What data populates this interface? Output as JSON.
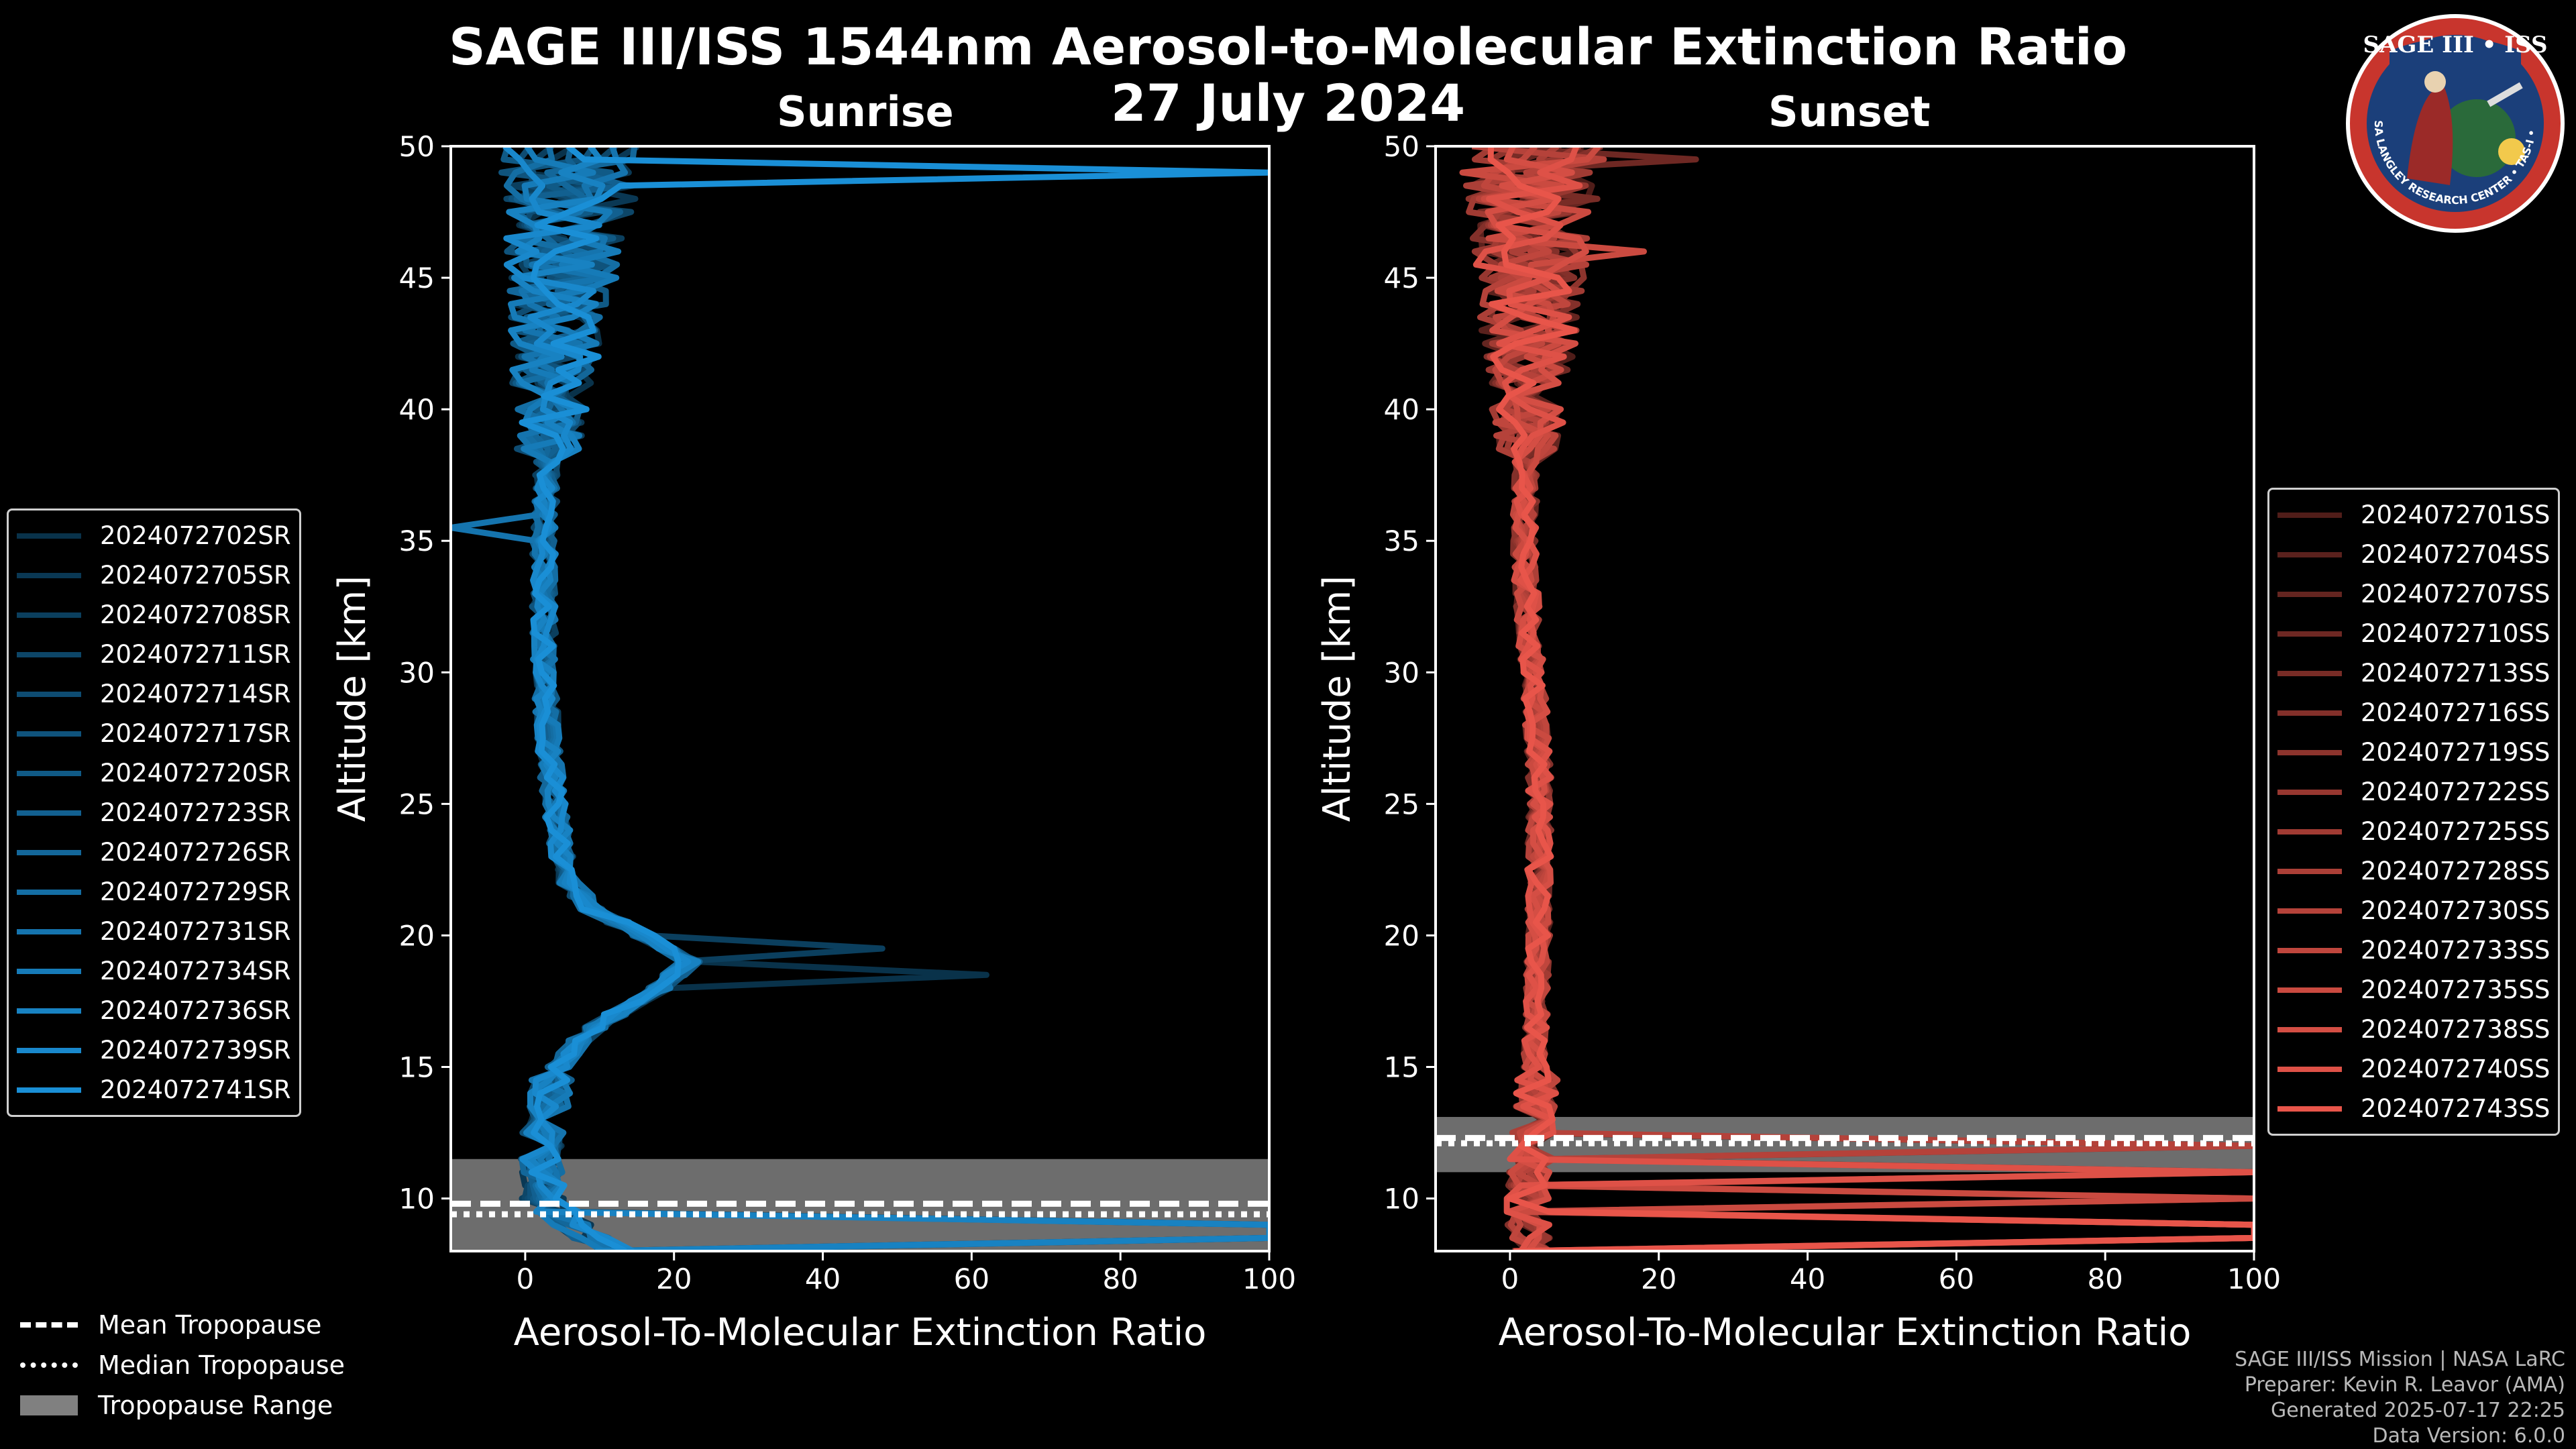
{
  "title": "SAGE III/ISS 1544nm Aerosol-to-Molecular Extinction Ratio",
  "date": "27 July 2024",
  "logo": {
    "text": "SAGE III • ISS",
    "ring": "NASA LANGLEY RESEARCH CENTER • TAS-I • ESA"
  },
  "credits": [
    "SAGE III/ISS Mission | NASA LaRC",
    "Preparer: Kevin R. Leavor (AMA)",
    "Generated 2025-07-17 22:25",
    "Data Version: 6.0.0"
  ],
  "tropopause_legend": {
    "mean": "Mean Tropopause",
    "median": "Median Tropopause",
    "range": "Tropopause Range"
  },
  "colors": {
    "sunrise": "#1a8fd6",
    "sunset": "#e8554a",
    "tropopause_range": "#808080"
  },
  "chart_data": [
    {
      "type": "line",
      "title": "Sunrise",
      "xlabel": "Aerosol-To-Molecular Extinction Ratio",
      "ylabel": "Altitude [km]",
      "xlim": [
        -10,
        100
      ],
      "ylim": [
        8,
        50
      ],
      "xticks": [
        0,
        20,
        40,
        60,
        80,
        100
      ],
      "yticks": [
        10,
        15,
        20,
        25,
        30,
        35,
        40,
        45,
        50
      ],
      "legend_position": "left",
      "tropopause": {
        "range": [
          8,
          11.5
        ],
        "mean": 9.8,
        "median": 9.4
      },
      "base_profile": [
        [
          8,
          12
        ],
        [
          9,
          6
        ],
        [
          10,
          2.5
        ],
        [
          11,
          2
        ],
        [
          12,
          2.2
        ],
        [
          13,
          2.6
        ],
        [
          14,
          3.2
        ],
        [
          15,
          4.5
        ],
        [
          16,
          7
        ],
        [
          17,
          12
        ],
        [
          18,
          18
        ],
        [
          19,
          22
        ],
        [
          20,
          16
        ],
        [
          21,
          9
        ],
        [
          22,
          6
        ],
        [
          23,
          5
        ],
        [
          24,
          4.5
        ],
        [
          25,
          4
        ],
        [
          26,
          3.6
        ],
        [
          27,
          3.2
        ],
        [
          28,
          3
        ],
        [
          29,
          2.8
        ],
        [
          30,
          2.6
        ],
        [
          32,
          2.5
        ],
        [
          34,
          2.5
        ],
        [
          36,
          2.6
        ],
        [
          38,
          3
        ],
        [
          40,
          3.5
        ],
        [
          42,
          4
        ],
        [
          44,
          4.5
        ],
        [
          46,
          5
        ],
        [
          48,
          6
        ],
        [
          50,
          6
        ]
      ],
      "series": [
        {
          "name": "2024072702SR",
          "spike": {
            "alt": 18.5,
            "value": 62
          }
        },
        {
          "name": "2024072705SR"
        },
        {
          "name": "2024072708SR",
          "spike": {
            "alt": 19.5,
            "value": 48
          }
        },
        {
          "name": "2024072711SR"
        },
        {
          "name": "2024072714SR"
        },
        {
          "name": "2024072717SR"
        },
        {
          "name": "2024072720SR",
          "spike": {
            "alt": 20.3,
            "value": 40
          }
        },
        {
          "name": "2024072723SR"
        },
        {
          "name": "2024072726SR"
        },
        {
          "name": "2024072729SR"
        },
        {
          "name": "2024072731SR",
          "spike": {
            "alt": 35.5,
            "value": -10
          }
        },
        {
          "name": "2024072734SR"
        },
        {
          "name": "2024072736SR"
        },
        {
          "name": "2024072739SR"
        },
        {
          "name": "2024072741SR",
          "spike": {
            "alt": 49,
            "value": 100
          }
        }
      ]
    },
    {
      "type": "line",
      "title": "Sunset",
      "xlabel": "Aerosol-To-Molecular Extinction Ratio",
      "ylabel": "Altitude [km]",
      "xlim": [
        -10,
        100
      ],
      "ylim": [
        8,
        50
      ],
      "xticks": [
        0,
        20,
        40,
        60,
        80,
        100
      ],
      "yticks": [
        10,
        15,
        20,
        25,
        30,
        35,
        40,
        45,
        50
      ],
      "legend_position": "right",
      "tropopause": {
        "range": [
          11,
          13.1
        ],
        "mean": 12.3,
        "median": 12.1
      },
      "base_profile": [
        [
          8,
          3
        ],
        [
          9,
          2.5
        ],
        [
          10,
          2.5
        ],
        [
          11,
          2.8
        ],
        [
          12,
          3
        ],
        [
          13,
          3.2
        ],
        [
          14,
          3.4
        ],
        [
          15,
          3.4
        ],
        [
          16,
          3.5
        ],
        [
          17,
          3.5
        ],
        [
          18,
          3.6
        ],
        [
          19,
          3.7
        ],
        [
          20,
          3.8
        ],
        [
          22,
          3.9
        ],
        [
          24,
          4
        ],
        [
          26,
          4
        ],
        [
          28,
          3.6
        ],
        [
          30,
          3
        ],
        [
          32,
          2.5
        ],
        [
          34,
          2
        ],
        [
          36,
          2
        ],
        [
          38,
          2.2
        ],
        [
          40,
          2.5
        ],
        [
          42,
          2.5
        ],
        [
          44,
          2.8
        ],
        [
          46,
          3
        ],
        [
          48,
          3
        ],
        [
          50,
          3
        ]
      ],
      "series": [
        {
          "name": "2024072701SS"
        },
        {
          "name": "2024072704SS"
        },
        {
          "name": "2024072707SS"
        },
        {
          "name": "2024072710SS",
          "spike": {
            "alt": 49.5,
            "value": 25
          }
        },
        {
          "name": "2024072713SS"
        },
        {
          "name": "2024072716SS"
        },
        {
          "name": "2024072719SS"
        },
        {
          "name": "2024072722SS"
        },
        {
          "name": "2024072725SS"
        },
        {
          "name": "2024072728SS"
        },
        {
          "name": "2024072730SS"
        },
        {
          "name": "2024072733SS"
        },
        {
          "name": "2024072735SS",
          "spike": {
            "alt": 46,
            "value": 18
          }
        },
        {
          "name": "2024072738SS"
        },
        {
          "name": "2024072740SS"
        },
        {
          "name": "2024072743SS"
        }
      ]
    }
  ]
}
